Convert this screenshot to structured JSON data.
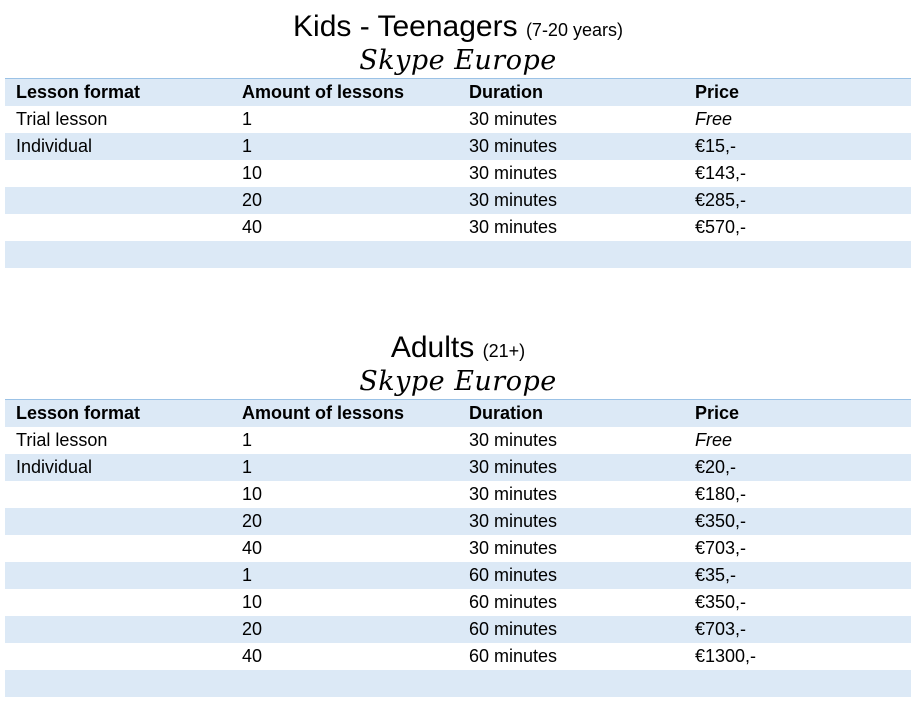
{
  "kids": {
    "title": "Kids - Teenagers",
    "title_suffix": "(7-20 years)",
    "subtitle": "Skype Europe",
    "headers": [
      "Lesson format",
      "Amount of lessons",
      "Duration",
      "Price"
    ],
    "rows": [
      [
        "Trial lesson",
        "1",
        "30 minutes",
        "Free"
      ],
      [
        "Individual",
        "1",
        "30 minutes",
        "€15,-"
      ],
      [
        "",
        "10",
        "30 minutes",
        "€143,-"
      ],
      [
        "",
        "20",
        "30 minutes",
        "€285,-"
      ],
      [
        "",
        "40",
        "30 minutes",
        "€570,-"
      ],
      [
        "",
        "",
        "",
        ""
      ]
    ]
  },
  "adults": {
    "title": "Adults",
    "title_suffix": "(21+)",
    "subtitle": "Skype Europe",
    "headers": [
      "Lesson format",
      "Amount of lessons",
      "Duration",
      "Price"
    ],
    "rows": [
      [
        "Trial lesson",
        "1",
        "30 minutes",
        "Free"
      ],
      [
        "Individual",
        "1",
        "30 minutes",
        "€20,-"
      ],
      [
        "",
        "10",
        "30 minutes",
        "€180,-"
      ],
      [
        "",
        "20",
        "30 minutes",
        "€350,-"
      ],
      [
        "",
        "40",
        "30 minutes",
        "€703,-"
      ],
      [
        "",
        "1",
        "60 minutes",
        "€35,-"
      ],
      [
        "",
        "10",
        "60 minutes",
        "€350,-"
      ],
      [
        "",
        "20",
        "60 minutes",
        "€703,-"
      ],
      [
        "",
        "40",
        "60 minutes",
        "€1300,-"
      ],
      [
        "",
        "",
        "",
        ""
      ]
    ]
  }
}
